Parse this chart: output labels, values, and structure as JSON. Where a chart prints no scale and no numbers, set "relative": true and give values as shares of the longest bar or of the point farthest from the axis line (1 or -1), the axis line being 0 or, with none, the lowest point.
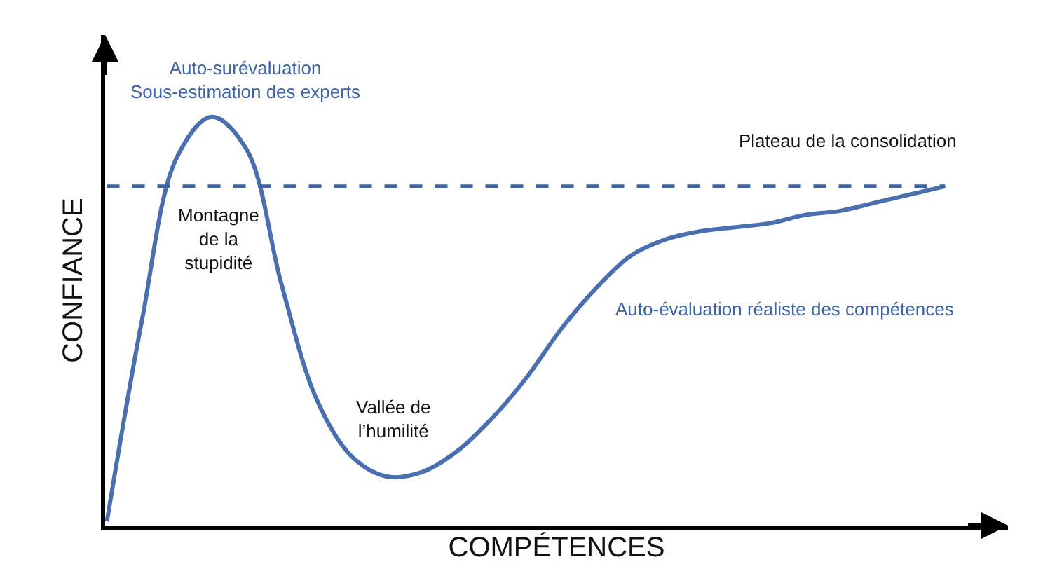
{
  "chart_data": {
    "type": "line",
    "relative": true,
    "xlabel": "COMPÉTENCES",
    "ylabel": "CONFIANCE",
    "categories": [
      null,
      null,
      null,
      null,
      null,
      null,
      null,
      null,
      null,
      null,
      null,
      null,
      null,
      null,
      null,
      null,
      null,
      null,
      null,
      null,
      null,
      null,
      null,
      null,
      null
    ],
    "series": [
      {
        "color": "#4a6fb0",
        "values": [
          0.01,
          0.5,
          0.9,
          1.0,
          0.92,
          0.59,
          0.31,
          0.17,
          0.12,
          0.13,
          0.18,
          0.26,
          0.36,
          0.48,
          0.58,
          0.66,
          0.7,
          0.72,
          0.73,
          0.74,
          0.76,
          0.77,
          0.79,
          0.81,
          0.83
        ]
      }
    ],
    "ref_lines": [
      {
        "axis": "y",
        "value": 0.83,
        "line_style": "dashed",
        "color": "#3a63a8"
      }
    ],
    "annotations": [
      "Auto-surévaluation\nSous-estimation des experts",
      "Plateau de la consolidation",
      "Montagne\nde la\nstupidité",
      "Vallée de\nl’humilité",
      "Auto-évaluation réaliste des compétences"
    ],
    "marker": "none",
    "line_style": "solid"
  }
}
